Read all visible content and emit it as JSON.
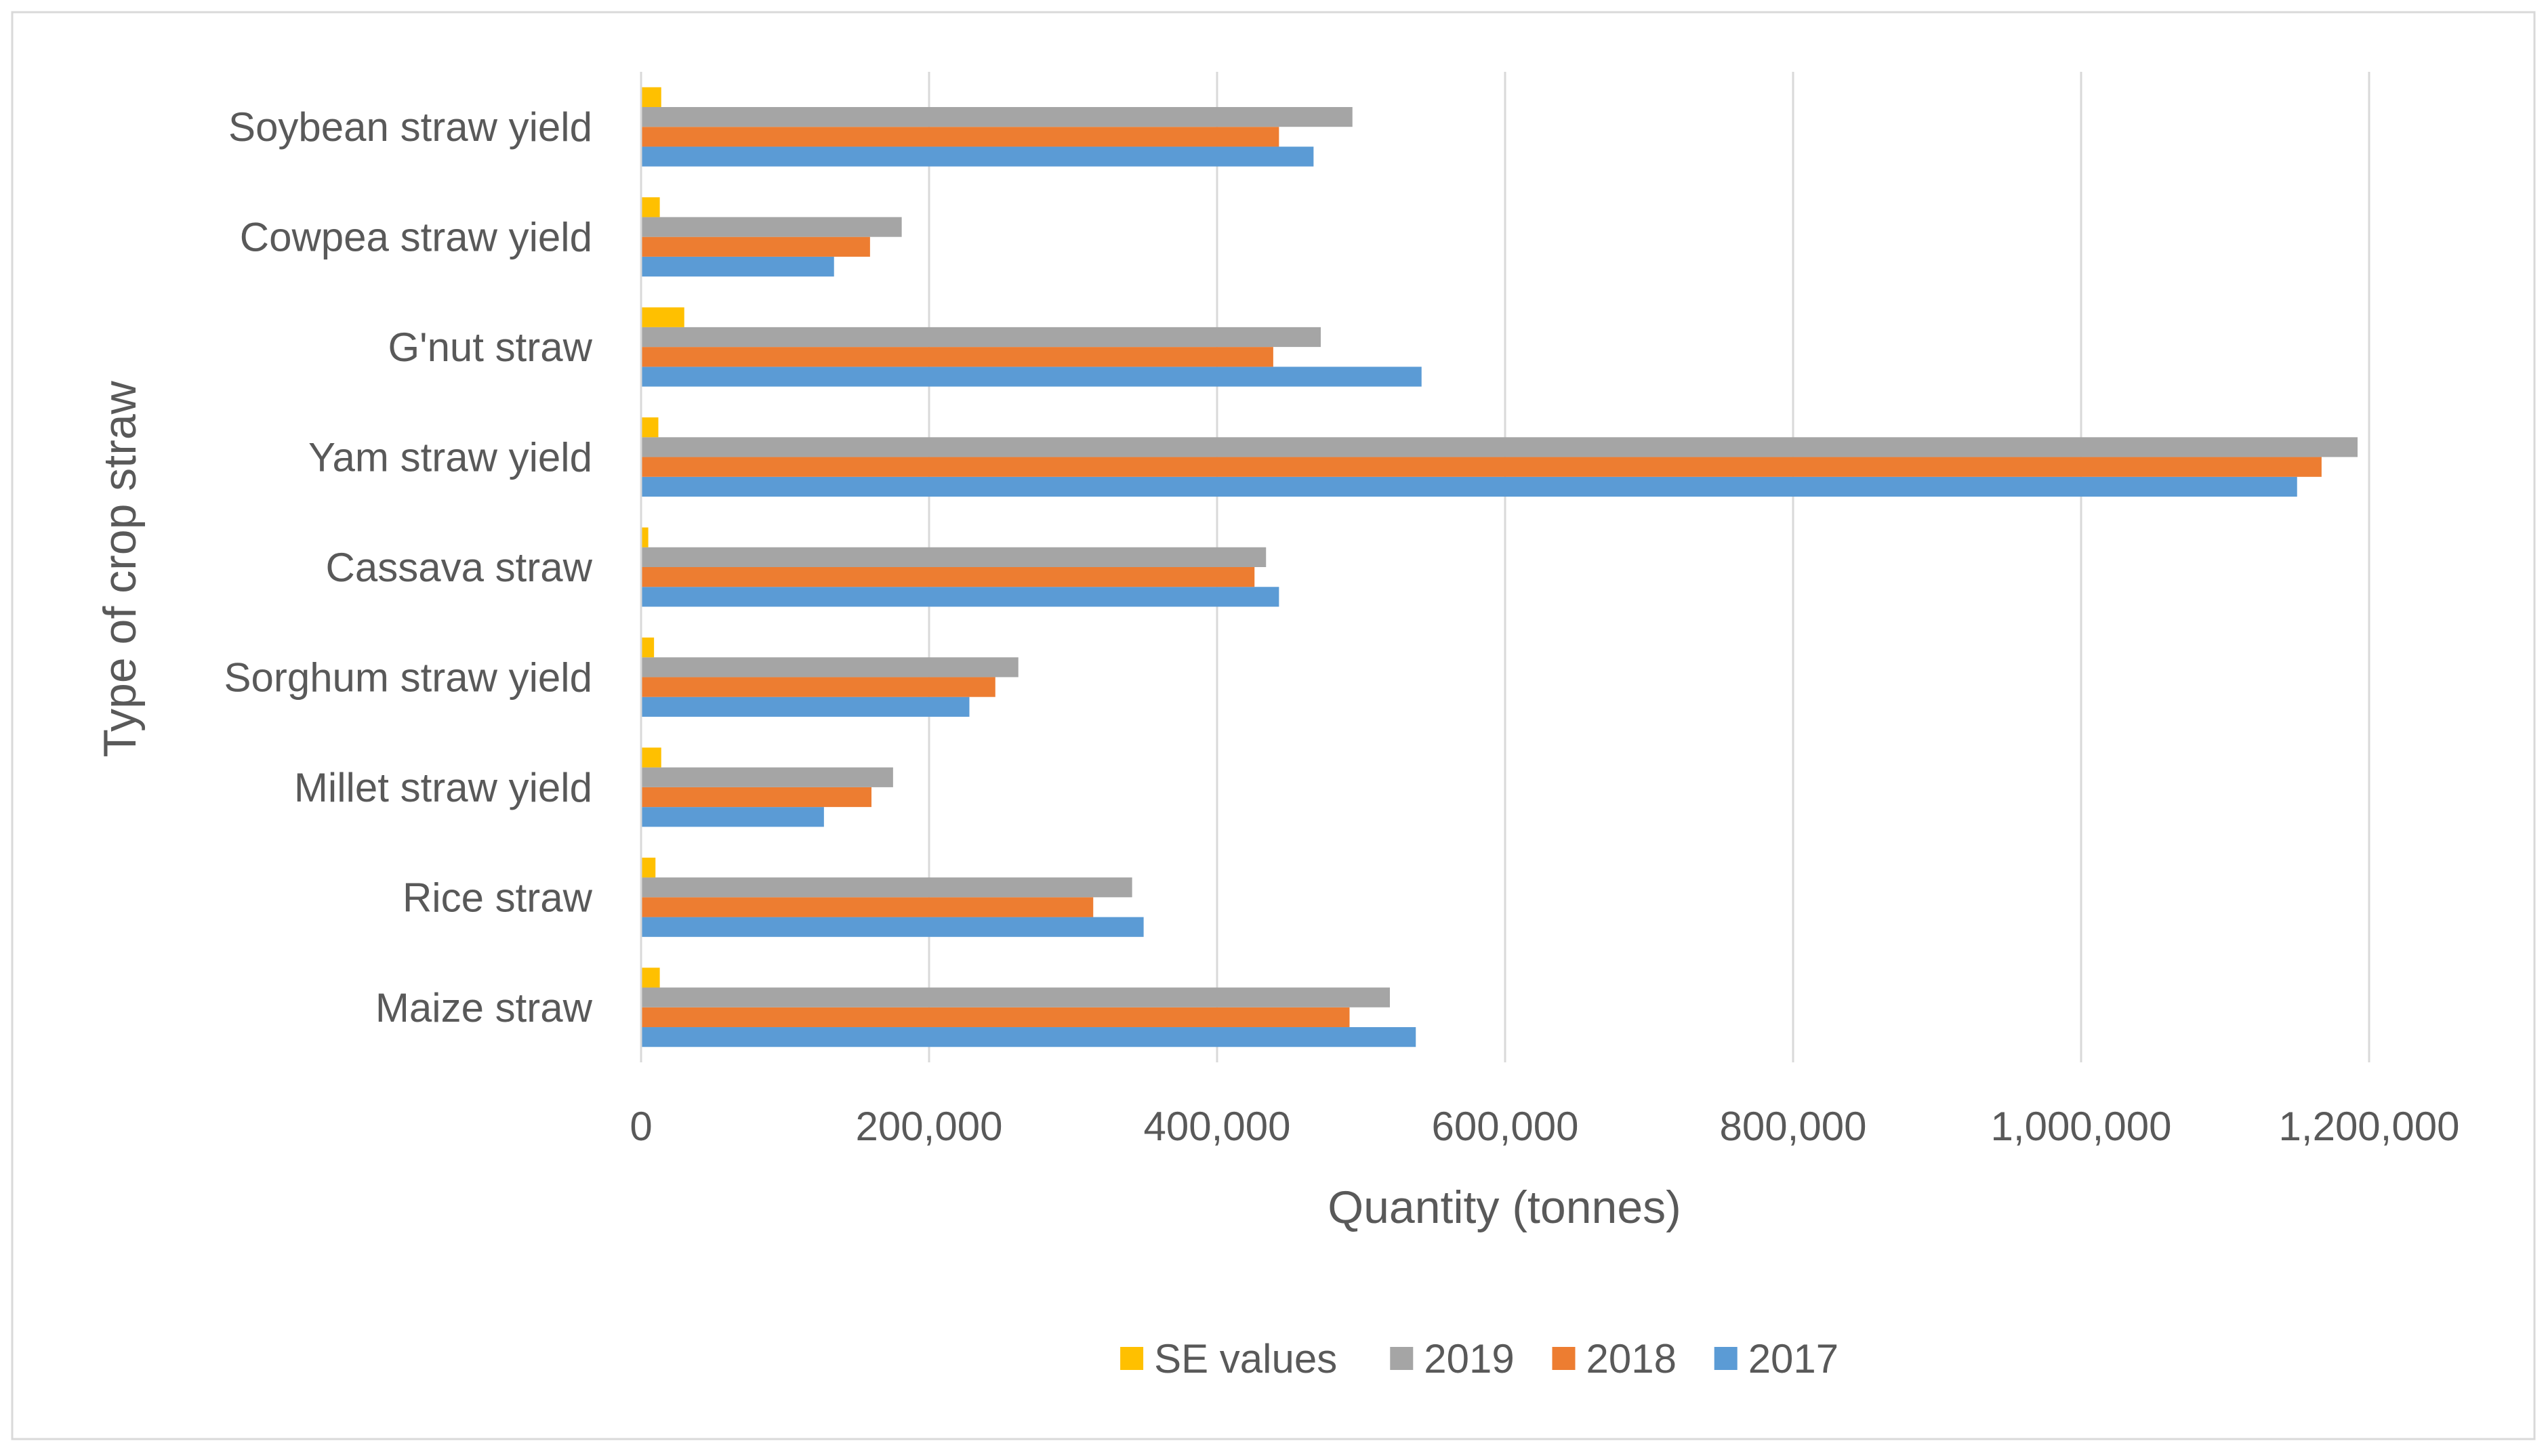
{
  "chart_data": {
    "type": "bar",
    "orientation": "horizontal",
    "title": "",
    "xlabel": "Quantity (tonnes)",
    "ylabel": "Type of crop straw",
    "xlim": [
      0,
      1200000
    ],
    "xticks": [
      0,
      200000,
      400000,
      600000,
      800000,
      1000000,
      1200000
    ],
    "xtick_labels": [
      "0",
      "200,000",
      "400,000",
      "600,000",
      "800,000",
      "1,000,000",
      "1,200,000"
    ],
    "grid": true,
    "legend_position": "bottom",
    "categories": [
      "Maize straw",
      "Rice straw",
      "Millet straw yield",
      "Sorghum straw yield",
      "Cassava straw",
      "Yam straw yield",
      "G'nut straw",
      "Cowpea straw yield",
      "Soybean straw yield"
    ],
    "series": [
      {
        "name": "2017",
        "color": "#5B9BD5",
        "values": [
          538000,
          349000,
          127000,
          228000,
          443000,
          1150000,
          542000,
          134000,
          467000
        ]
      },
      {
        "name": "2018",
        "color": "#ED7D31",
        "values": [
          492000,
          314000,
          160000,
          246000,
          426000,
          1167000,
          439000,
          159000,
          443000
        ]
      },
      {
        "name": "2019",
        "color": "#A5A5A5",
        "values": [
          520000,
          341000,
          175000,
          262000,
          434000,
          1192000,
          472000,
          181000,
          494000
        ]
      },
      {
        "name": "SE values",
        "color": "#FFC000",
        "values": [
          13000,
          10000,
          14000,
          9000,
          5000,
          12000,
          30000,
          13000,
          14000
        ]
      }
    ],
    "legend_order": [
      "SE values",
      "2019",
      "2018",
      "2017"
    ]
  }
}
